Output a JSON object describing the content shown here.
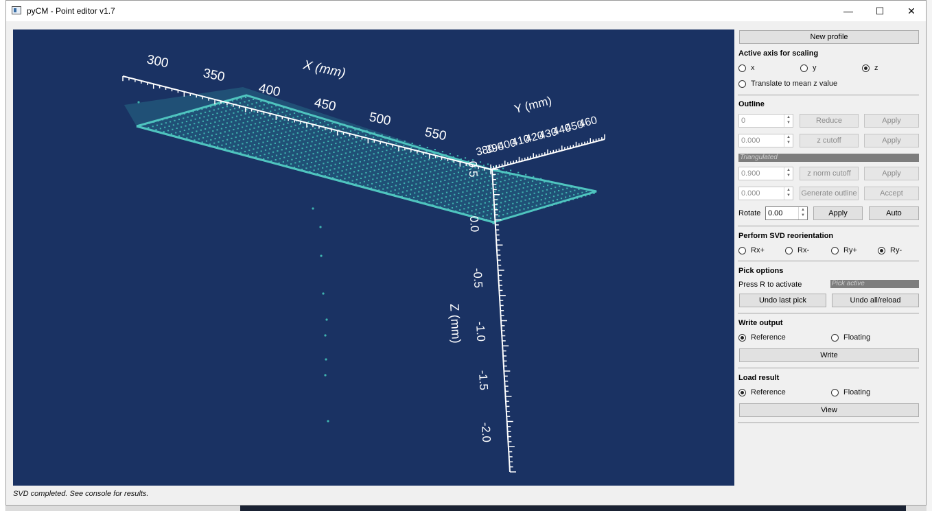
{
  "window": {
    "title": "pyCM - Point editor v1.7",
    "minimize_glyph": "—",
    "maximize_glyph": "☐",
    "close_glyph": "✕"
  },
  "viewport": {
    "x_axis_title": "X (mm)",
    "y_axis_title": "Y (mm)",
    "z_axis_title": "Z (mm)",
    "x_ticks": [
      "300",
      "350",
      "400",
      "450",
      "500",
      "550"
    ],
    "y_ticks": [
      "380",
      "390",
      "400",
      "410",
      "420",
      "430",
      "440",
      "450",
      "460"
    ],
    "z_ticks": [
      "0.5",
      "0.0",
      "-0.5",
      "-1.0",
      "-1.5",
      "-2.0"
    ],
    "background_color": "#1a3263",
    "point_color": "#3fb3b0"
  },
  "status": "SVD completed. See console for results.",
  "panel": {
    "new_profile": "New profile",
    "scaling": {
      "title": "Active axis for scaling",
      "options": [
        "x",
        "y",
        "z"
      ],
      "selected": "z",
      "translate_label": "Translate to mean z value"
    },
    "outline": {
      "title": "Outline",
      "reduce_value": "0",
      "reduce_button": "Reduce",
      "reduce_apply": "Apply",
      "zcut_value": "0.000",
      "zcut_button": "z cutoff",
      "zcut_apply": "Apply",
      "triangulated_label": "Triangulated",
      "znorm_value": "0.900",
      "znorm_button": "z norm cutoff",
      "znorm_apply": "Apply",
      "gen_value": "0.000",
      "gen_button": "Generate outline",
      "gen_accept": "Accept",
      "rotate_label": "Rotate",
      "rotate_value": "0.00",
      "rotate_apply": "Apply",
      "rotate_auto": "Auto"
    },
    "svd": {
      "title": "Perform SVD reorientation",
      "options": [
        "Rx+",
        "Rx-",
        "Ry+",
        "Ry-"
      ],
      "selected": "Ry-"
    },
    "pick": {
      "title": "Pick options",
      "hint": "Press R to activate",
      "status_field": "Pick active",
      "undo_last": "Undo last pick",
      "undo_all": "Undo all/reload"
    },
    "write": {
      "title": "Write output",
      "options": [
        "Reference",
        "Floating"
      ],
      "selected": "Reference",
      "button": "Write"
    },
    "load": {
      "title": "Load result",
      "options": [
        "Reference",
        "Floating"
      ],
      "selected": "Reference",
      "button": "View"
    }
  }
}
